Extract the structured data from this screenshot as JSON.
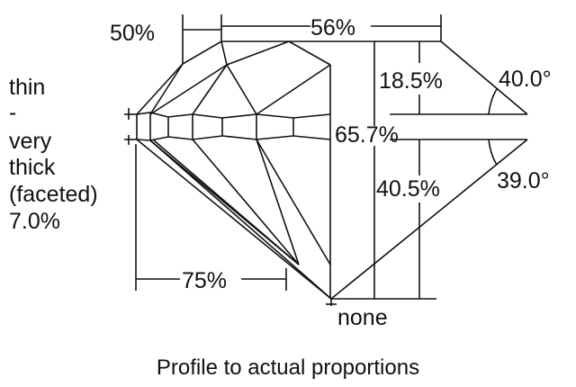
{
  "diagram": {
    "caption": "Profile to actual proportions",
    "girdle": {
      "lines": [
        "thin",
        "-",
        "very",
        "thick",
        "(faceted)",
        "7.0%"
      ]
    },
    "table_width_label": "56%",
    "star_length_label": "50%",
    "crown_height_label": "18.5%",
    "crown_angle_label": "40.0°",
    "total_depth_label": "65.7%",
    "pavilion_depth_label": "40.5%",
    "pavilion_angle_label": "39.0°",
    "lower_half_label": "75%",
    "culet_label": "none",
    "line_color": "#111111"
  }
}
